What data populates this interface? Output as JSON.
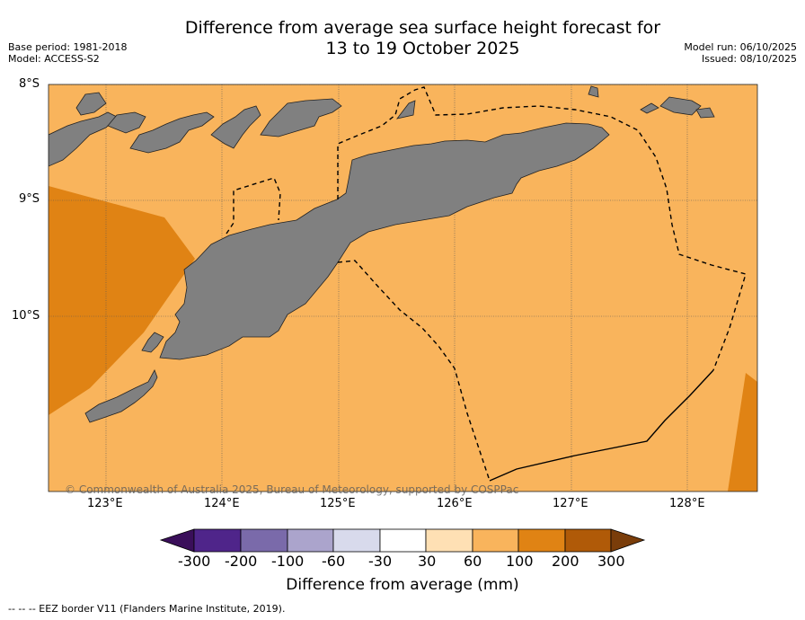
{
  "title": {
    "line1": "Difference from average sea surface height forecast for",
    "line2": "13 to 19 October 2025"
  },
  "meta_left": {
    "base_period": "Base period: 1981-2018",
    "model": "Model: ACCESS-S2"
  },
  "meta_right": {
    "model_run": "Model run: 06/10/2025",
    "issued": "Issued: 08/10/2025"
  },
  "map": {
    "latitude_labels": [
      "8°S",
      "9°S",
      "10°S"
    ],
    "longitude_labels": [
      "123°E",
      "124°E",
      "125°E",
      "126°E",
      "127°E",
      "128°E"
    ],
    "lon_range": [
      122.5,
      128.6
    ],
    "lat_range": [
      -11.5,
      -8.0
    ],
    "credit": "© Commonwealth of Australia 2025, Bureau of Meteorology, supported by COSPPac",
    "colors": {
      "land": "#808080",
      "class_60_100": "#f9b45c",
      "class_100_200": "#e08314",
      "border": "#000000"
    }
  },
  "colorbar": {
    "tick_labels": [
      "-300",
      "-200",
      "-100",
      "-60",
      "-30",
      "30",
      "60",
      "100",
      "200",
      "300"
    ],
    "colors": [
      "#3a0f5a",
      "#4f258a",
      "#7a6aaa",
      "#aba4cc",
      "#d8daec",
      "#ffffff",
      "#fee0b4",
      "#f9b45c",
      "#e08314",
      "#b05a08",
      "#7a3d0a"
    ],
    "title": "Difference from average (mm)"
  },
  "footnote": "-- -- -- EEZ border V11 (Flanders Marine Institute, 2019)."
}
